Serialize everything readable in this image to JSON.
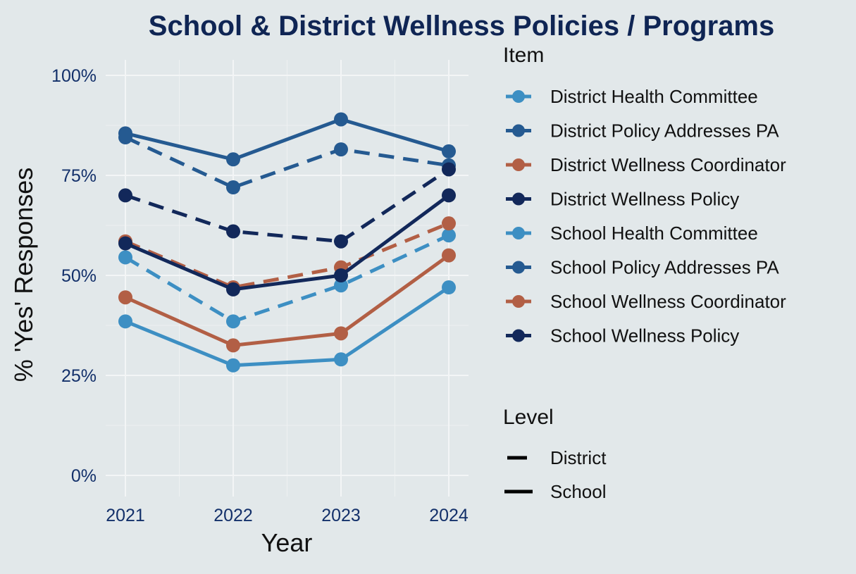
{
  "chart_data": {
    "type": "line",
    "title": "School & District Wellness Policies / Programs",
    "xlabel": "Year",
    "ylabel": "% 'Yes' Responses",
    "x": [
      "2021",
      "2022",
      "2023",
      "2024"
    ],
    "ylim": [
      0,
      1
    ],
    "yticks": [
      {
        "value": 0,
        "label": "0%"
      },
      {
        "value": 0.25,
        "label": "25%"
      },
      {
        "value": 0.5,
        "label": "50%"
      },
      {
        "value": 0.75,
        "label": "75%"
      },
      {
        "value": 1.0,
        "label": "100%"
      }
    ],
    "grid": true,
    "legend_position": "right",
    "legend_item_title": "Item",
    "legend_level_title": "Level",
    "levels": [
      {
        "name": "District",
        "dash": "dashed"
      },
      {
        "name": "School",
        "dash": "solid"
      }
    ],
    "series": [
      {
        "name": "District Health Committee",
        "level": "District",
        "color": "#3d8fc3",
        "values": [
          0.545,
          0.385,
          0.475,
          0.6
        ]
      },
      {
        "name": "District Policy Addresses PA",
        "level": "District",
        "color": "#255a91",
        "values": [
          0.845,
          0.72,
          0.815,
          0.775
        ]
      },
      {
        "name": "District Wellness Coordinator",
        "level": "District",
        "color": "#b25f45",
        "values": [
          0.585,
          0.47,
          0.52,
          0.63
        ]
      },
      {
        "name": "District Wellness Policy",
        "level": "District",
        "color": "#12285a",
        "values": [
          0.7,
          0.61,
          0.585,
          0.765
        ]
      },
      {
        "name": "School Health Committee",
        "level": "School",
        "color": "#3d8fc3",
        "values": [
          0.385,
          0.275,
          0.29,
          0.47
        ]
      },
      {
        "name": "School Policy Addresses PA",
        "level": "School",
        "color": "#255a91",
        "values": [
          0.855,
          0.79,
          0.89,
          0.81
        ]
      },
      {
        "name": "School Wellness Coordinator",
        "level": "School",
        "color": "#b25f45",
        "values": [
          0.445,
          0.325,
          0.355,
          0.55
        ]
      },
      {
        "name": "School Wellness Policy",
        "level": "School",
        "color": "#12285a",
        "values": [
          0.58,
          0.465,
          0.5,
          0.7
        ]
      }
    ]
  }
}
